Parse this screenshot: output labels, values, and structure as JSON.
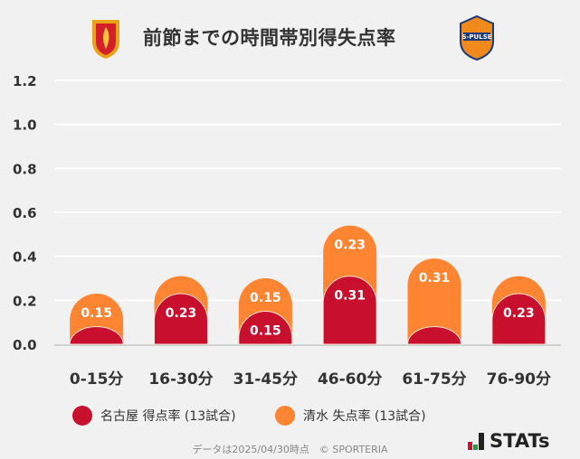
{
  "title": "前節までの時間帯別得失点率",
  "logos": {
    "left": "Nagoya Grampus crest",
    "right": "S-PULSE"
  },
  "chart_data": {
    "type": "bar",
    "stacked": true,
    "categories": [
      "0-15分",
      "16-30分",
      "31-45分",
      "46-60分",
      "61-75分",
      "76-90分"
    ],
    "series": [
      {
        "name": "名古屋 得点率 (13試合)",
        "color": "#c8102e",
        "values": [
          0.08,
          0.23,
          0.15,
          0.31,
          0.08,
          0.23
        ],
        "labels": [
          "",
          "0.23",
          "0.15",
          "0.31",
          "",
          "0.23"
        ]
      },
      {
        "name": "清水 失点率 (13試合)",
        "color": "#ff8533",
        "values": [
          0.15,
          0.08,
          0.15,
          0.23,
          0.31,
          0.08
        ],
        "labels": [
          "0.15",
          "",
          "0.15",
          "0.23",
          "0.31",
          ""
        ]
      }
    ],
    "yticks": [
      "0.0",
      "0.2",
      "0.4",
      "0.6",
      "0.8",
      "1.0",
      "1.2"
    ],
    "ylim": [
      0,
      1.2
    ],
    "grid": true,
    "legend": "bottom"
  },
  "footer": "データは2025/04/30時点　© SPORTERIA",
  "brand": "STATs"
}
